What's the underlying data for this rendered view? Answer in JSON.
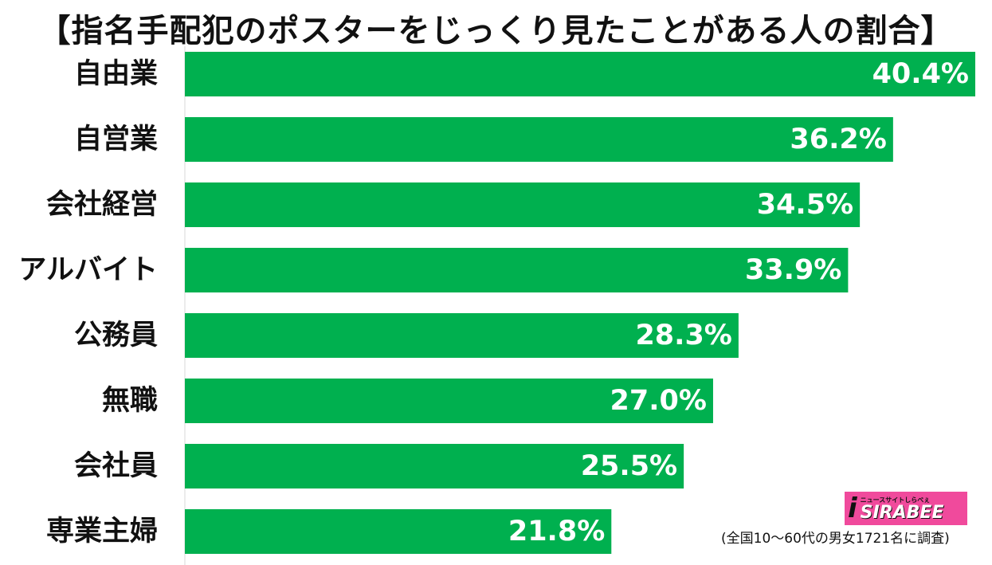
{
  "title": "【指名手配犯のポスターをじっくり見たことがある人の割合】",
  "colors": {
    "bar": "#00b04f",
    "value_text": "#ffffff",
    "label_text": "#111111",
    "axis": "#d9d9d9",
    "logo_bg": "#f04a9c"
  },
  "chart_data": {
    "type": "bar",
    "orientation": "horizontal",
    "title": "【指名手配犯のポスターをじっくり見たことがある人の割合】",
    "categories": [
      "自由業",
      "自営業",
      "会社経営",
      "アルバイト",
      "公務員",
      "無職",
      "会社員",
      "専業主婦"
    ],
    "values": [
      40.4,
      36.2,
      34.5,
      33.9,
      28.3,
      27.0,
      25.5,
      21.8
    ],
    "value_labels": [
      "40.4%",
      "36.2%",
      "34.5%",
      "33.9%",
      "28.3%",
      "27.0%",
      "25.5%",
      "21.8%"
    ],
    "unit": "%",
    "xlim": [
      0,
      40.4
    ],
    "grid": false,
    "legend": "none"
  },
  "logo": {
    "mark": "i",
    "tagline": "ニュースサイトしらべぇ",
    "word": "SIRABEE",
    "icon": "sirabee-logo"
  },
  "footnote": "(全国10～60代の男女1721名に調査)"
}
